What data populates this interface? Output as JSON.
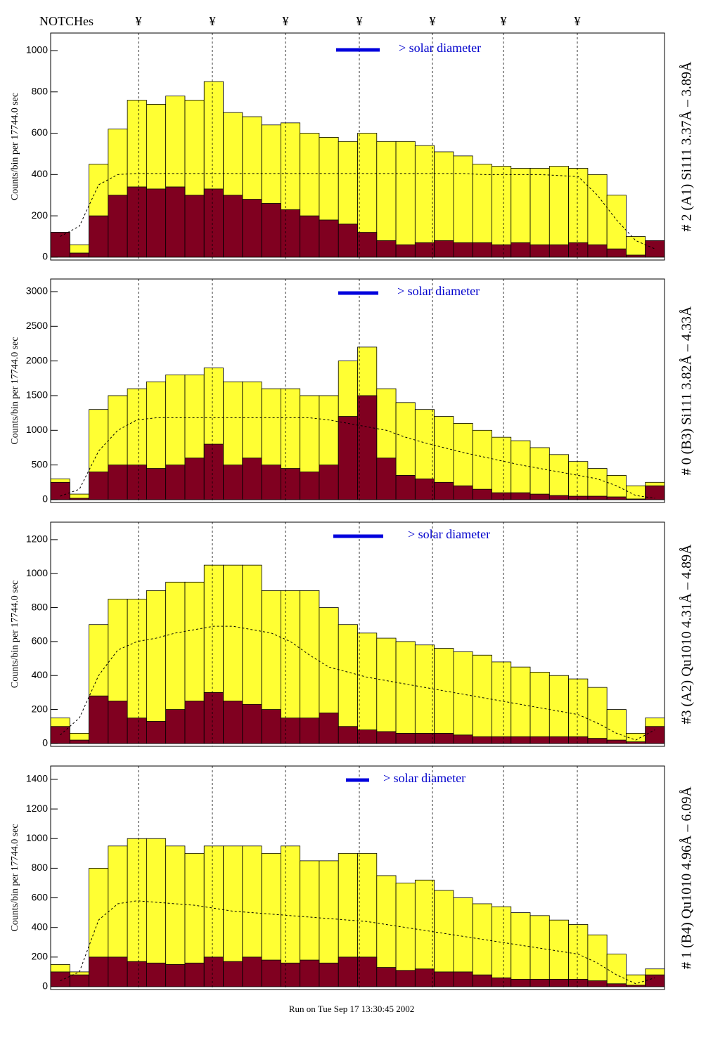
{
  "notches_label": "NOTCHes",
  "notch_marker": "¥",
  "footer": "Run on Tue Sep 17 13:30:45 2002",
  "chart_data": [
    {
      "type": "histogram",
      "ylabel": "Counts/bin per  17744.0 sec",
      "side_label": "# 2 (A1) Si111  3.37Å – 3.89Å",
      "annotation": "> solar diameter",
      "categories": [
        null,
        null,
        null,
        null,
        null,
        null,
        null,
        null,
        null,
        null,
        null,
        null,
        null,
        null,
        null,
        null,
        null,
        null,
        null,
        null,
        null,
        null,
        null,
        null,
        null,
        null,
        null,
        null,
        null,
        null,
        null,
        null
      ],
      "series": [
        {
          "kind": "bar",
          "color": "#ffff33",
          "values": [
            120,
            60,
            450,
            620,
            760,
            740,
            780,
            760,
            850,
            700,
            680,
            640,
            650,
            600,
            580,
            560,
            600,
            560,
            560,
            540,
            510,
            490,
            450,
            440,
            430,
            430,
            440,
            430,
            400,
            300,
            100,
            60
          ]
        },
        {
          "kind": "bar",
          "color": "#800020",
          "values": [
            120,
            20,
            200,
            300,
            340,
            330,
            340,
            300,
            330,
            300,
            280,
            260,
            230,
            200,
            180,
            160,
            120,
            80,
            60,
            70,
            80,
            70,
            70,
            60,
            70,
            60,
            60,
            70,
            60,
            40,
            10,
            80
          ]
        },
        {
          "kind": "dashed",
          "color": "#000000",
          "values": [
            100,
            150,
            350,
            400,
            405,
            405,
            405,
            405,
            405,
            405,
            405,
            405,
            405,
            405,
            405,
            405,
            405,
            405,
            405,
            405,
            405,
            405,
            400,
            400,
            400,
            400,
            395,
            390,
            300,
            180,
            80,
            40
          ]
        }
      ],
      "ylim": [
        -14,
        1085
      ],
      "yticks": [
        0,
        200,
        400,
        600,
        800,
        1000
      ]
    },
    {
      "type": "histogram",
      "ylabel": "Counts/bin per  17744.0 sec",
      "side_label": "# 0 (B3) Si111  3.82Å – 4.33Å",
      "annotation": "> solar diameter",
      "categories": [
        null,
        null,
        null,
        null,
        null,
        null,
        null,
        null,
        null,
        null,
        null,
        null,
        null,
        null,
        null,
        null,
        null,
        null,
        null,
        null,
        null,
        null,
        null,
        null,
        null,
        null,
        null,
        null,
        null,
        null,
        null,
        null
      ],
      "series": [
        {
          "kind": "bar",
          "color": "#ffff33",
          "values": [
            300,
            80,
            1300,
            1500,
            1600,
            1700,
            1800,
            1800,
            1900,
            1700,
            1700,
            1600,
            1600,
            1500,
            1500,
            2000,
            2200,
            1600,
            1400,
            1300,
            1200,
            1100,
            1000,
            900,
            850,
            750,
            650,
            550,
            450,
            350,
            200,
            250
          ]
        },
        {
          "kind": "bar",
          "color": "#800020",
          "values": [
            250,
            20,
            400,
            500,
            500,
            450,
            500,
            600,
            800,
            500,
            600,
            500,
            450,
            400,
            500,
            1200,
            1500,
            600,
            350,
            300,
            250,
            200,
            150,
            100,
            100,
            80,
            60,
            50,
            50,
            40,
            10,
            200
          ]
        },
        {
          "kind": "dashed",
          "color": "#000000",
          "values": [
            50,
            150,
            700,
            1000,
            1150,
            1180,
            1180,
            1180,
            1180,
            1180,
            1180,
            1180,
            1180,
            1180,
            1150,
            1100,
            1050,
            1000,
            900,
            820,
            750,
            680,
            620,
            560,
            500,
            450,
            400,
            350,
            300,
            200,
            60,
            20
          ]
        }
      ],
      "ylim": [
        -41,
        3182
      ],
      "yticks": [
        0,
        500,
        1000,
        1500,
        2000,
        2500,
        3000
      ]
    },
    {
      "type": "histogram",
      "ylabel": "Counts/bin per  17744.0 sec",
      "side_label": "#3 (A2) Qu1010  4.31Å – 4.89Å",
      "annotation": "> solar diameter",
      "categories": [
        null,
        null,
        null,
        null,
        null,
        null,
        null,
        null,
        null,
        null,
        null,
        null,
        null,
        null,
        null,
        null,
        null,
        null,
        null,
        null,
        null,
        null,
        null,
        null,
        null,
        null,
        null,
        null,
        null,
        null,
        null,
        null
      ],
      "series": [
        {
          "kind": "bar",
          "color": "#ffff33",
          "values": [
            150,
            60,
            700,
            850,
            850,
            900,
            950,
            950,
            1050,
            1050,
            1050,
            900,
            900,
            900,
            800,
            700,
            650,
            620,
            600,
            580,
            560,
            540,
            520,
            480,
            450,
            420,
            400,
            380,
            330,
            200,
            60,
            150
          ]
        },
        {
          "kind": "bar",
          "color": "#800020",
          "values": [
            100,
            20,
            280,
            250,
            150,
            130,
            200,
            250,
            300,
            250,
            230,
            200,
            150,
            150,
            180,
            100,
            80,
            70,
            60,
            60,
            60,
            50,
            40,
            40,
            40,
            40,
            40,
            40,
            30,
            20,
            10,
            100
          ]
        },
        {
          "kind": "dashed",
          "color": "#000000",
          "values": [
            50,
            150,
            400,
            550,
            600,
            620,
            650,
            670,
            690,
            690,
            670,
            650,
            600,
            520,
            450,
            420,
            390,
            370,
            350,
            330,
            310,
            290,
            270,
            250,
            230,
            210,
            190,
            170,
            120,
            60,
            20,
            80
          ]
        }
      ],
      "ylim": [
        -17,
        1303
      ],
      "yticks": [
        0,
        200,
        400,
        600,
        800,
        1000,
        1200
      ]
    },
    {
      "type": "histogram",
      "ylabel": "Counts/bin per  17744.0 sec",
      "side_label": "# 1 (B4) Qu1010 4.96Å – 6.09Å",
      "annotation": "> solar diameter",
      "categories": [
        null,
        null,
        null,
        null,
        null,
        null,
        null,
        null,
        null,
        null,
        null,
        null,
        null,
        null,
        null,
        null,
        null,
        null,
        null,
        null,
        null,
        null,
        null,
        null,
        null,
        null,
        null,
        null,
        null,
        null,
        null,
        null
      ],
      "series": [
        {
          "kind": "bar",
          "color": "#ffff33",
          "values": [
            150,
            100,
            800,
            950,
            1000,
            1000,
            950,
            900,
            950,
            950,
            950,
            900,
            950,
            850,
            850,
            900,
            900,
            750,
            700,
            720,
            650,
            600,
            560,
            540,
            500,
            480,
            450,
            420,
            350,
            220,
            80,
            120
          ]
        },
        {
          "kind": "bar",
          "color": "#800020",
          "values": [
            100,
            80,
            200,
            200,
            170,
            160,
            150,
            160,
            200,
            170,
            200,
            180,
            160,
            180,
            160,
            200,
            200,
            130,
            110,
            120,
            100,
            100,
            80,
            60,
            50,
            50,
            50,
            50,
            40,
            20,
            10,
            80
          ]
        },
        {
          "kind": "dashed",
          "color": "#000000",
          "values": [
            40,
            100,
            450,
            560,
            580,
            570,
            560,
            550,
            530,
            510,
            500,
            490,
            480,
            470,
            460,
            450,
            440,
            420,
            400,
            380,
            360,
            340,
            320,
            300,
            280,
            260,
            240,
            220,
            160,
            80,
            20,
            60
          ]
        }
      ],
      "ylim": [
        -19,
        1490
      ],
      "yticks": [
        0,
        200,
        400,
        600,
        800,
        1000,
        1200,
        1400
      ]
    }
  ]
}
